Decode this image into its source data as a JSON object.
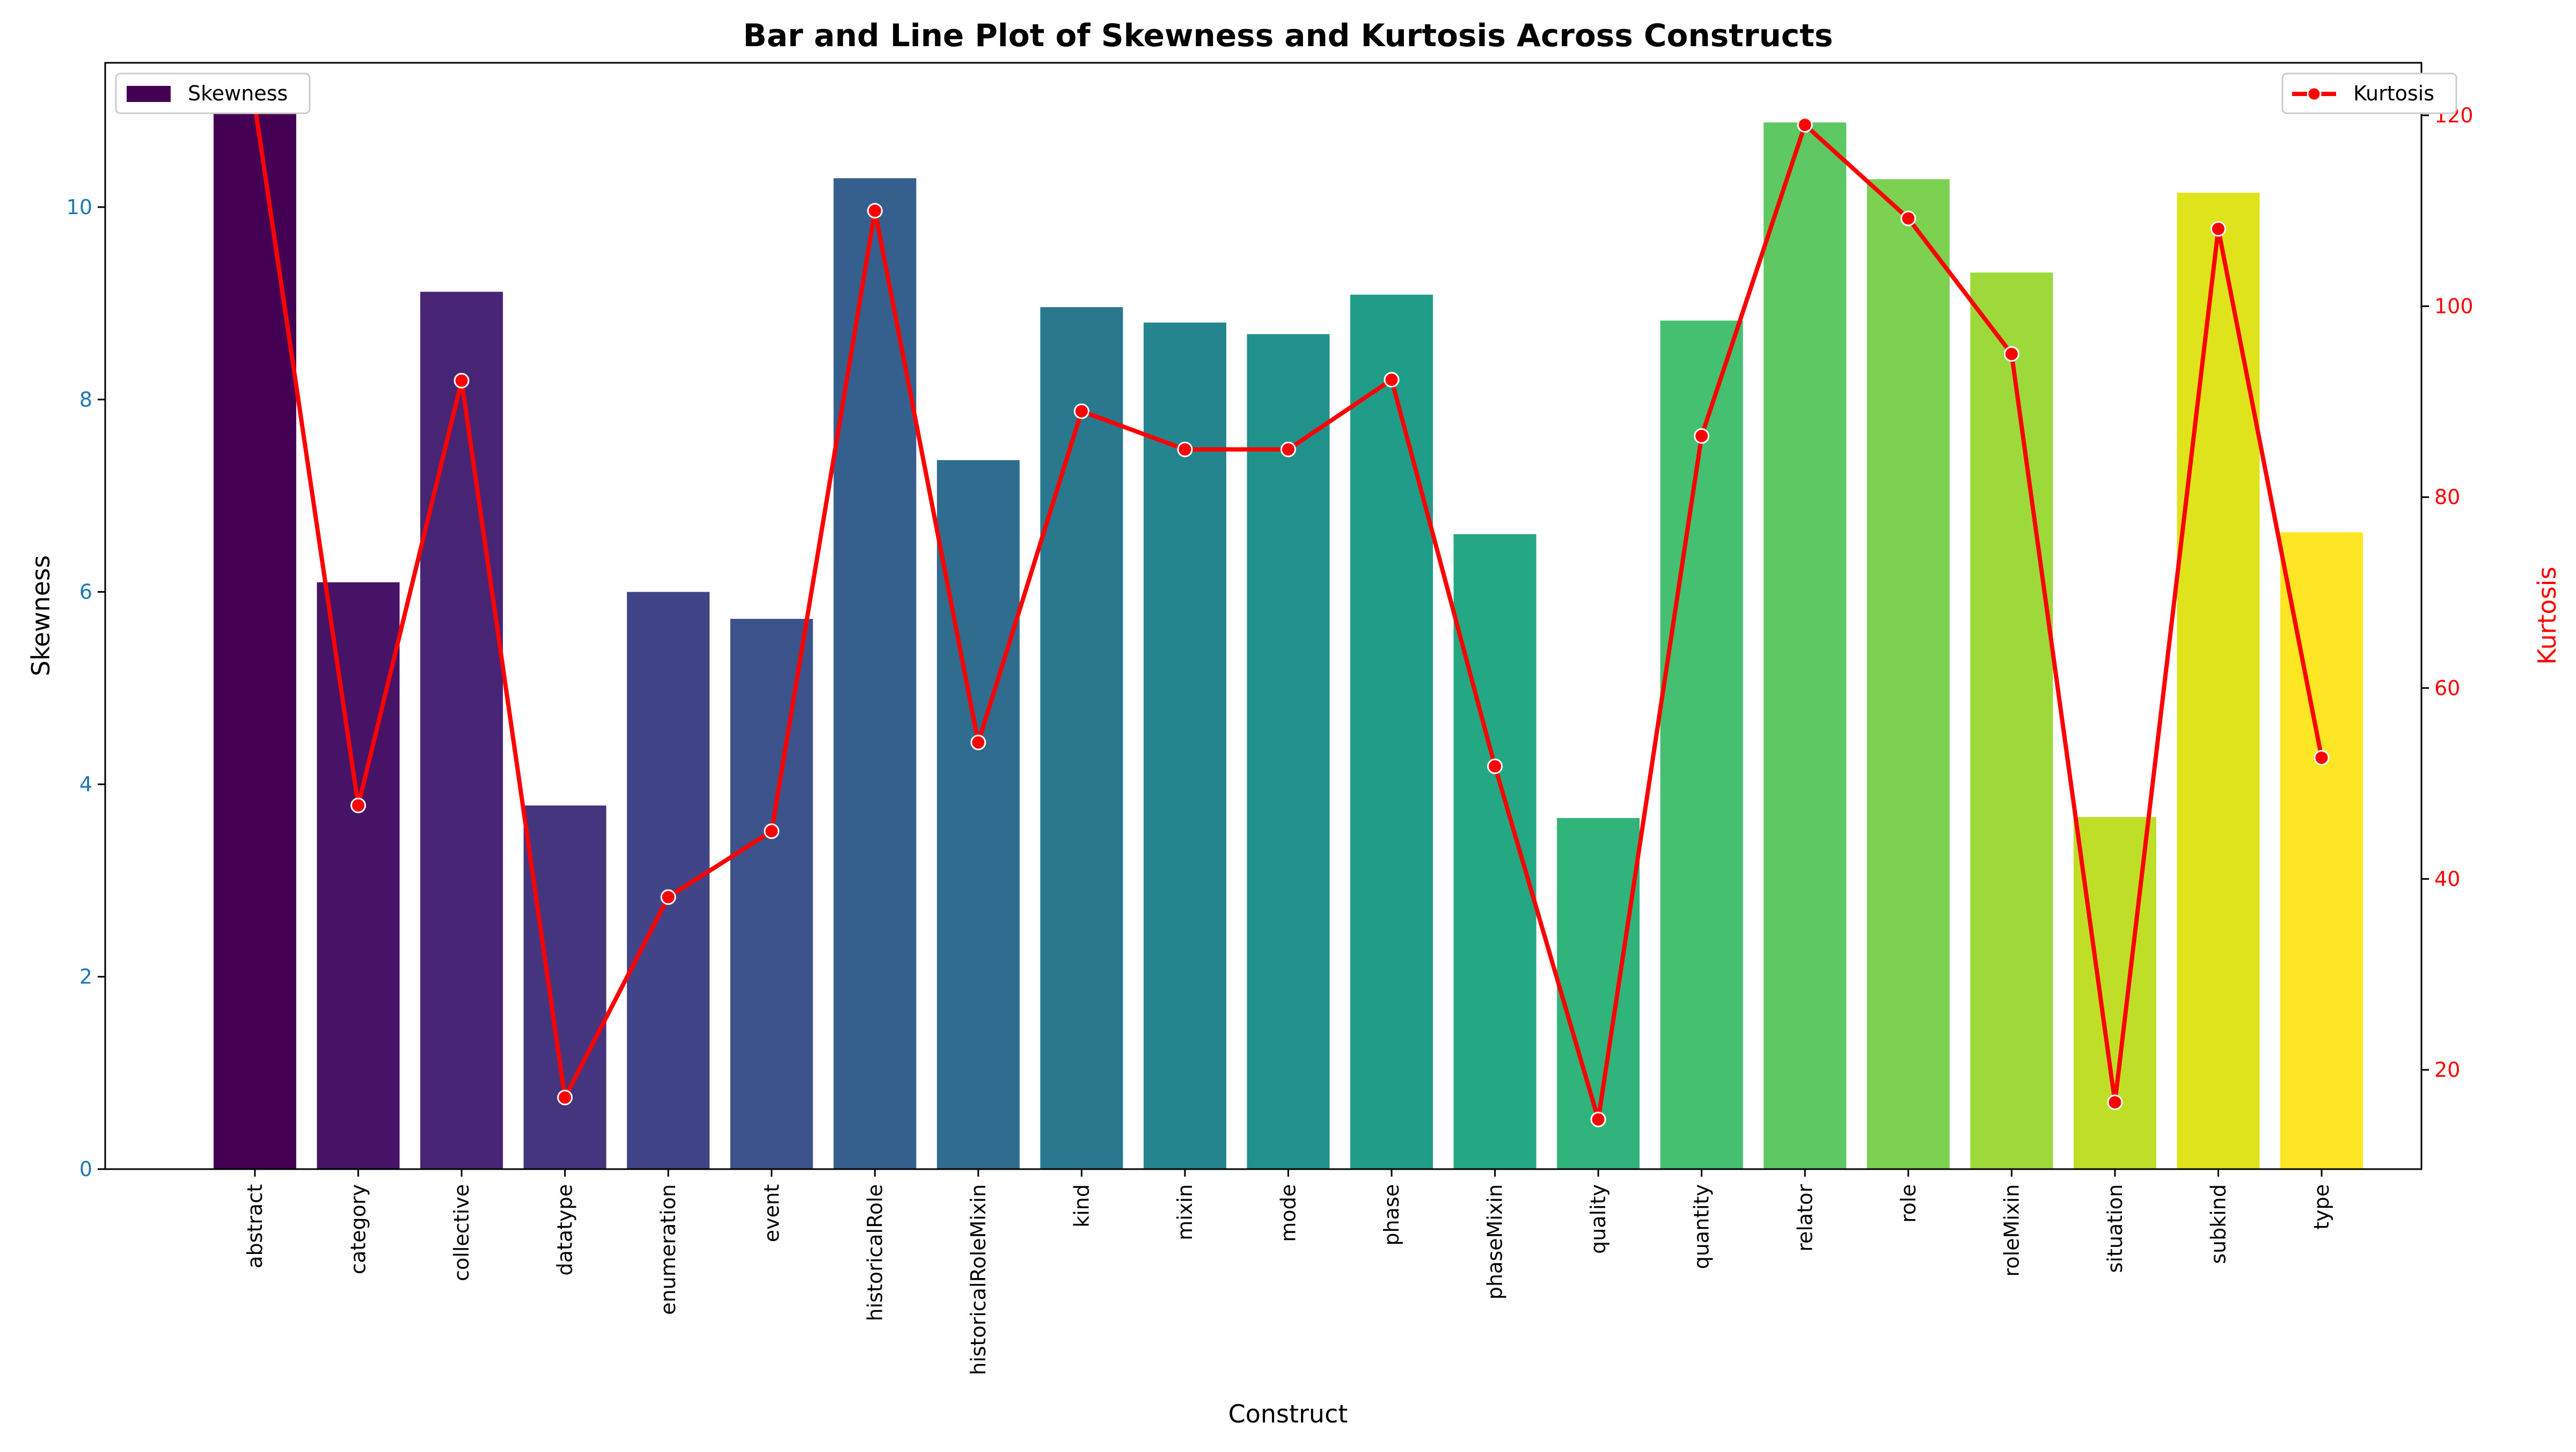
{
  "chart_data": {
    "type": "bar",
    "title": "Bar and Line Plot of Skewness and Kurtosis Across Constructs",
    "xlabel": "Construct",
    "ylabel": "Skewness",
    "y2label": "Kurtosis",
    "categories": [
      "abstract",
      "category",
      "collective",
      "datatype",
      "enumeration",
      "event",
      "historicalRole",
      "historicalRoleMixin",
      "kind",
      "mixin",
      "mode",
      "phase",
      "phaseMixin",
      "quality",
      "quantity",
      "relator",
      "role",
      "roleMixin",
      "situation",
      "subkind",
      "type"
    ],
    "ylim": [
      0,
      11.5
    ],
    "y2lim": [
      9.6,
      125.5
    ],
    "yticks": [
      0,
      2,
      4,
      6,
      8,
      10
    ],
    "y2ticks": [
      20,
      40,
      60,
      80,
      100,
      120
    ],
    "series": [
      {
        "name": "Skewness",
        "type": "bar",
        "axis": "left",
        "values": [
          11.08,
          6.1,
          9.12,
          3.78,
          6.0,
          5.72,
          10.3,
          7.37,
          8.96,
          8.8,
          8.68,
          9.09,
          6.6,
          3.65,
          8.82,
          10.88,
          10.29,
          9.32,
          3.66,
          10.15,
          6.62
        ]
      },
      {
        "name": "Kurtosis",
        "type": "line",
        "axis": "right",
        "color": "#ff0000",
        "values": [
          121.0,
          47.7,
          92.2,
          17.1,
          38.1,
          45.0,
          110.0,
          54.3,
          89.0,
          85.0,
          85.0,
          92.3,
          51.8,
          14.8,
          86.4,
          119.0,
          109.2,
          95.0,
          16.6,
          108.1,
          52.7
        ]
      }
    ],
    "bar_colors": [
      "#440154",
      "#48186a",
      "#472d7b",
      "#424086",
      "#3b528b",
      "#33638d",
      "#2c728e",
      "#26828e",
      "#21918c",
      "#1fa088",
      "#28ae80",
      "#3fbc73",
      "#5ec962",
      "#84d44b",
      "#addc30",
      "#d8e219",
      "#fde725"
    ],
    "legend": [
      {
        "label": "Skewness",
        "position": "upper-left"
      },
      {
        "label": "Kurtosis",
        "position": "upper-right"
      }
    ],
    "grid": false
  }
}
